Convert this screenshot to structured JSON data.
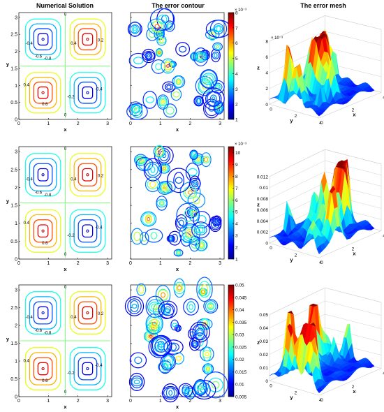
{
  "titles": {
    "col1": "Numerical Solution",
    "col2": "The error contour",
    "col3": "The error mesh"
  },
  "axes": {
    "x_label": "x",
    "y_label": "y",
    "z_label": "z",
    "contour_x_ticks": [
      "0",
      "1",
      "2",
      "3"
    ],
    "contour_y_ticks": [
      "0",
      "0.5",
      "1",
      "1.5",
      "2",
      "2.5",
      "3"
    ],
    "mesh_xy_ticks": [
      "0",
      "2",
      "4"
    ]
  },
  "contour_labels": [
    "0",
    "0.2",
    "0.4",
    "0.6",
    "0.8",
    "-0.2",
    "-0.4",
    "-0.6",
    "-0.8"
  ],
  "colors": {
    "jet": [
      "#00008f",
      "#0000ff",
      "#0080ff",
      "#00ffff",
      "#80ff80",
      "#ffff00",
      "#ff8000",
      "#ff0000",
      "#800000"
    ]
  },
  "chart_data": [
    {
      "type": "contour",
      "title": "Numerical Solution",
      "xlabel": "x",
      "ylabel": "y",
      "xlim": [
        0,
        3.14
      ],
      "ylim": [
        0,
        3.14
      ],
      "levels": [
        -0.8,
        -0.6,
        -0.4,
        -0.2,
        0,
        0.2,
        0.4,
        0.6,
        0.8
      ],
      "row": 1
    },
    {
      "type": "contour",
      "title": "The error contour",
      "xlabel": "x",
      "xlim": [
        0,
        3.14
      ],
      "ylim": [
        0,
        3.14
      ],
      "colorbar": {
        "ticks": [
          "1",
          "2",
          "3",
          "4",
          "5",
          "6",
          "7",
          "8"
        ],
        "exponent": "× 10⁻³",
        "min": 1,
        "max": 8
      },
      "row": 1
    },
    {
      "type": "surface",
      "title": "The error mesh",
      "xlabel": "x",
      "ylabel": "y",
      "zlabel": "z",
      "zlim": [
        0,
        0.008
      ],
      "z_ticks": [
        "0",
        "2",
        "4",
        "6",
        "8"
      ],
      "z_exponent": "× 10⁻³",
      "row": 1
    },
    {
      "type": "contour",
      "xlabel": "x",
      "ylabel": "y",
      "xlim": [
        0,
        3.14
      ],
      "ylim": [
        0,
        3.14
      ],
      "levels": [
        -0.8,
        -0.6,
        -0.4,
        -0.2,
        0,
        0.2,
        0.4,
        0.6,
        0.8
      ],
      "row": 2
    },
    {
      "type": "contour",
      "xlabel": "x",
      "xlim": [
        0,
        3.14
      ],
      "ylim": [
        0,
        3.14
      ],
      "colorbar": {
        "ticks": [
          "1",
          "2",
          "3",
          "4",
          "5",
          "6",
          "7",
          "8",
          "9",
          "10"
        ],
        "exponent": "× 10⁻³",
        "min": 1,
        "max": 10.5
      },
      "row": 2
    },
    {
      "type": "surface",
      "xlabel": "x",
      "ylabel": "y",
      "zlabel": "z",
      "zlim": [
        0,
        0.012
      ],
      "z_ticks": [
        "0",
        "0.002",
        "0.004",
        "0.006",
        "0.008",
        "0.01",
        "0.012"
      ],
      "row": 2
    },
    {
      "type": "contour",
      "xlabel": "x",
      "ylabel": "y",
      "xlim": [
        0,
        3.14
      ],
      "ylim": [
        0,
        3.14
      ],
      "levels": [
        -0.8,
        -0.6,
        -0.4,
        -0.2,
        0,
        0.2,
        0.4,
        0.6,
        0.8
      ],
      "row": 3
    },
    {
      "type": "contour",
      "xlabel": "x",
      "xlim": [
        0,
        3.14
      ],
      "ylim": [
        0,
        3.14
      ],
      "colorbar": {
        "ticks": [
          "0.005",
          "0.01",
          "0.015",
          "0.02",
          "0.025",
          "0.03",
          "0.035",
          "0.04",
          "0.045",
          "0.05"
        ],
        "exponent": "",
        "min": 0.005,
        "max": 0.05
      },
      "row": 3
    },
    {
      "type": "surface",
      "xlabel": "x",
      "ylabel": "y",
      "zlabel": "z",
      "zlim": [
        0,
        0.05
      ],
      "z_ticks": [
        "0",
        "0.01",
        "0.02",
        "0.03",
        "0.04",
        "0.05"
      ],
      "row": 3
    }
  ]
}
